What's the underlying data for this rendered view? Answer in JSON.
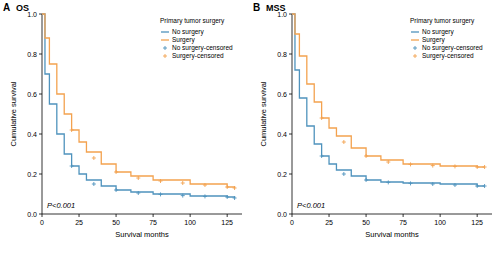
{
  "chart_data": [
    {
      "type": "line",
      "panel_label": "A",
      "title": "OS",
      "x_label": "Survival months",
      "y_label": "Cumulative survival",
      "annotations": [
        "P<0.001"
      ],
      "legend_title": "Primary tumor surgery",
      "legend": "upper right",
      "xlim": [
        0,
        135
      ],
      "xticks": [
        0,
        25,
        50,
        75,
        100,
        125
      ],
      "ylim": [
        0,
        1
      ],
      "yticks": [
        {
          "value": 0,
          "label": "0.0"
        },
        0.2,
        0.4,
        0.6,
        0.8,
        {
          "value": 1,
          "label": "1.0"
        }
      ],
      "series": [
        {
          "name": "No surgery",
          "type": "line",
          "line_style": "step",
          "color": "#4f93bd",
          "x": [
            0,
            2,
            5,
            10,
            15,
            20,
            25,
            30,
            40,
            50,
            60,
            75,
            100,
            125,
            130
          ],
          "values": [
            1.0,
            0.7,
            0.55,
            0.4,
            0.3,
            0.24,
            0.2,
            0.17,
            0.14,
            0.12,
            0.11,
            0.1,
            0.09,
            0.085,
            0.08
          ]
        },
        {
          "name": "Surgery",
          "type": "line",
          "line_style": "step",
          "color": "#f3a24f",
          "x": [
            0,
            2,
            5,
            10,
            15,
            20,
            25,
            30,
            40,
            50,
            60,
            75,
            100,
            125,
            130
          ],
          "values": [
            1.0,
            0.88,
            0.75,
            0.6,
            0.5,
            0.42,
            0.36,
            0.31,
            0.25,
            0.21,
            0.19,
            0.17,
            0.15,
            0.135,
            0.13
          ]
        },
        {
          "name": "No surgery-censored",
          "type": "scatter",
          "marker": "plus",
          "color": "#4f93bd",
          "x": [
            20,
            35,
            50,
            65,
            80,
            95,
            110,
            125,
            130
          ],
          "values": [
            0.24,
            0.15,
            0.12,
            0.105,
            0.098,
            0.092,
            0.088,
            0.085,
            0.08
          ]
        },
        {
          "name": "Surgery-censored",
          "type": "scatter",
          "marker": "plus",
          "color": "#f3a24f",
          "x": [
            20,
            35,
            50,
            65,
            80,
            95,
            110,
            125,
            130
          ],
          "values": [
            0.42,
            0.28,
            0.21,
            0.18,
            0.165,
            0.155,
            0.145,
            0.135,
            0.13
          ]
        }
      ]
    },
    {
      "type": "line",
      "panel_label": "B",
      "title": "MSS",
      "x_label": "Survival months",
      "y_label": "Cumulative survival",
      "annotations": [
        "P<0.001"
      ],
      "legend_title": "Primary tumor surgery",
      "legend": "upper right",
      "xlim": [
        0,
        135
      ],
      "xticks": [
        0,
        25,
        50,
        75,
        100,
        125
      ],
      "ylim": [
        0,
        1
      ],
      "yticks": [
        {
          "value": 0,
          "label": "0.0"
        },
        0.2,
        0.4,
        0.6,
        0.8,
        {
          "value": 1,
          "label": "1.0"
        }
      ],
      "series": [
        {
          "name": "No surgery",
          "type": "line",
          "line_style": "step",
          "color": "#4f93bd",
          "x": [
            0,
            2,
            5,
            10,
            15,
            20,
            25,
            30,
            40,
            50,
            60,
            75,
            100,
            125,
            130
          ],
          "values": [
            1.0,
            0.72,
            0.58,
            0.44,
            0.35,
            0.29,
            0.25,
            0.22,
            0.19,
            0.17,
            0.16,
            0.155,
            0.15,
            0.14,
            0.14
          ]
        },
        {
          "name": "Surgery",
          "type": "line",
          "line_style": "step",
          "color": "#f3a24f",
          "x": [
            0,
            2,
            5,
            10,
            15,
            20,
            25,
            30,
            40,
            50,
            60,
            75,
            100,
            125,
            130
          ],
          "values": [
            1.0,
            0.9,
            0.79,
            0.65,
            0.56,
            0.48,
            0.43,
            0.39,
            0.33,
            0.29,
            0.27,
            0.25,
            0.24,
            0.235,
            0.235
          ]
        },
        {
          "name": "No surgery-censored",
          "type": "scatter",
          "marker": "plus",
          "color": "#4f93bd",
          "x": [
            20,
            35,
            50,
            65,
            80,
            95,
            110,
            125,
            130
          ],
          "values": [
            0.29,
            0.2,
            0.17,
            0.158,
            0.153,
            0.15,
            0.145,
            0.14,
            0.14
          ]
        },
        {
          "name": "Surgery-censored",
          "type": "scatter",
          "marker": "plus",
          "color": "#f3a24f",
          "x": [
            20,
            35,
            50,
            65,
            80,
            95,
            110,
            125,
            130
          ],
          "values": [
            0.48,
            0.36,
            0.29,
            0.26,
            0.248,
            0.242,
            0.238,
            0.235,
            0.235
          ]
        }
      ]
    }
  ]
}
